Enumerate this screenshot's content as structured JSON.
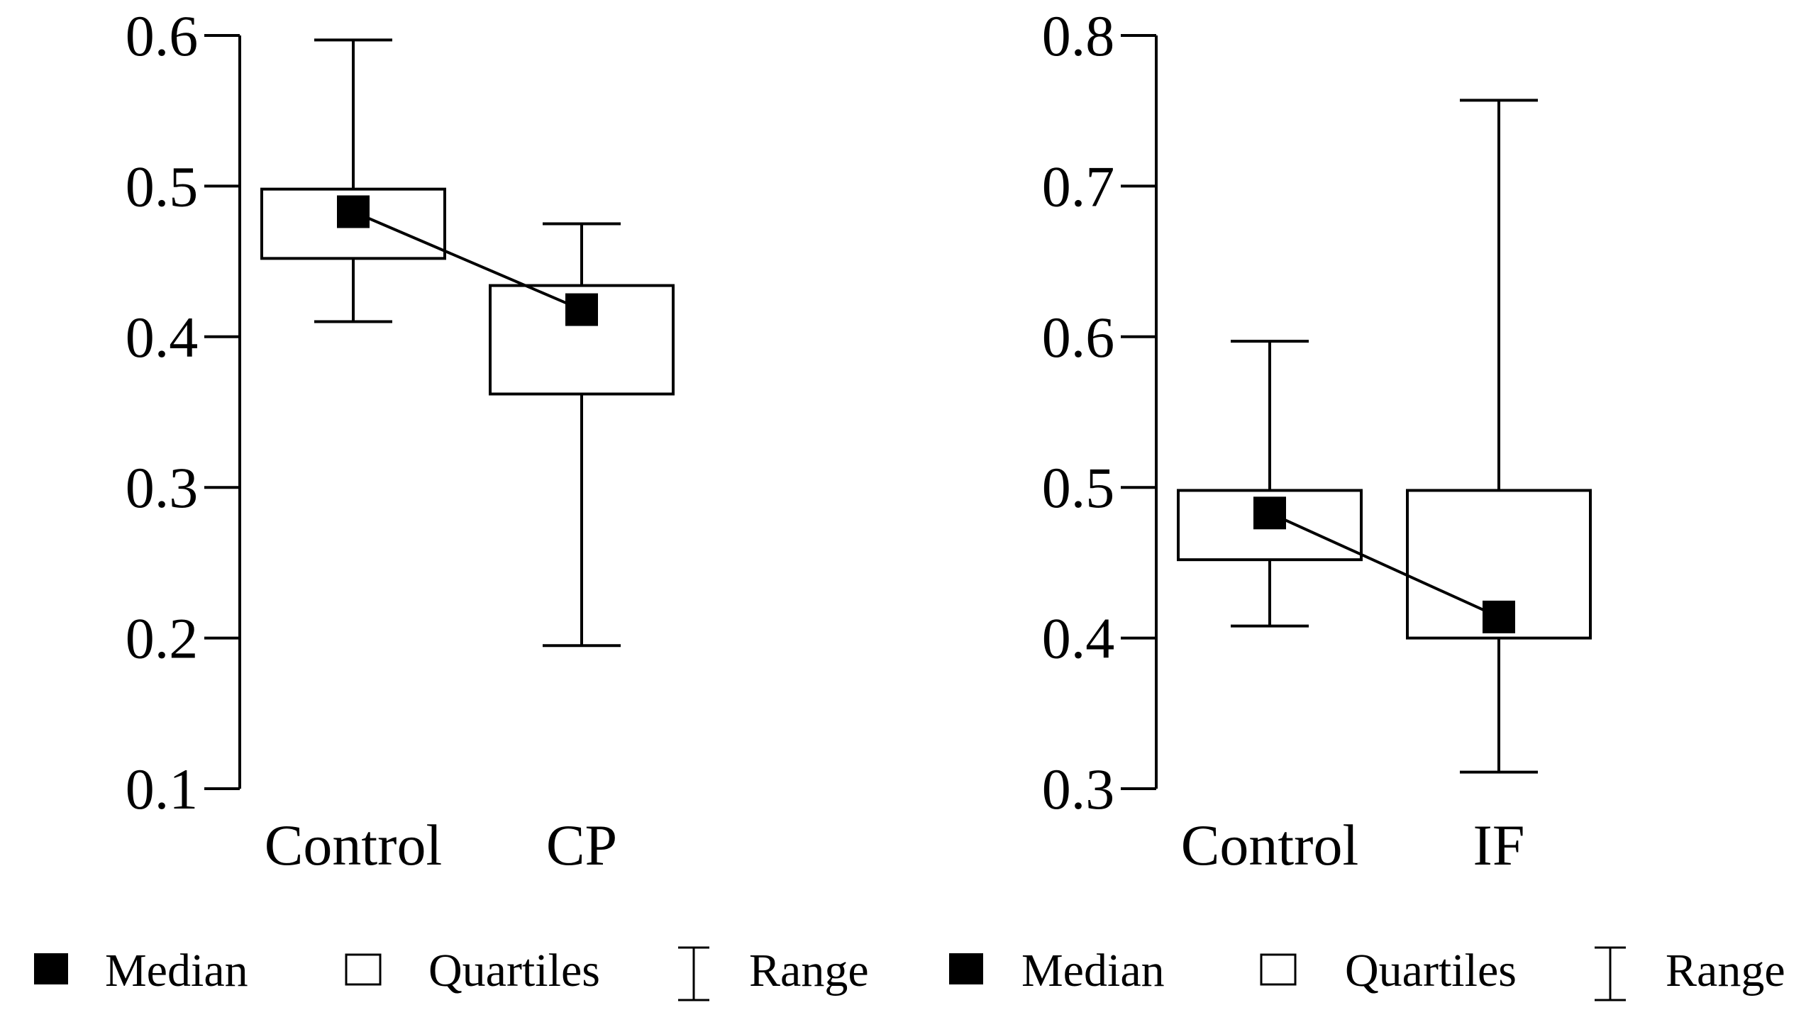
{
  "chart_data": [
    {
      "type": "box",
      "title": "",
      "xlabel": "",
      "ylabel": "",
      "ylim": [
        0.1,
        0.6
      ],
      "yticks": [
        "0.6",
        "0.5",
        "0.4",
        "0.3",
        "0.2",
        "0.1"
      ],
      "categories": [
        "Control",
        "CP"
      ],
      "groups": [
        {
          "name": "Control",
          "min": 0.41,
          "q1": 0.452,
          "median": 0.483,
          "q3": 0.498,
          "max": 0.597
        },
        {
          "name": "CP",
          "min": 0.195,
          "q1": 0.362,
          "median": 0.418,
          "q3": 0.434,
          "max": 0.475
        }
      ],
      "median_line": true
    },
    {
      "type": "box",
      "title": "",
      "xlabel": "",
      "ylabel": "",
      "ylim": [
        0.3,
        0.8
      ],
      "yticks": [
        "0.8",
        "0.7",
        "0.6",
        "0.5",
        "0.4",
        "0.3"
      ],
      "categories": [
        "Control",
        "IF"
      ],
      "groups": [
        {
          "name": "Control",
          "min": 0.408,
          "q1": 0.452,
          "median": 0.483,
          "q3": 0.498,
          "max": 0.597
        },
        {
          "name": "IF",
          "min": 0.311,
          "q1": 0.4,
          "median": 0.414,
          "q3": 0.498,
          "max": 0.757
        }
      ],
      "median_line": true
    }
  ],
  "legend": {
    "items": [
      {
        "symbol": "filled-square",
        "label": "Median"
      },
      {
        "symbol": "open-square",
        "label": "Quartiles"
      },
      {
        "symbol": "range-bar",
        "label": "Range"
      },
      {
        "symbol": "filled-square",
        "label": "Median"
      },
      {
        "symbol": "open-square",
        "label": "Quartiles"
      },
      {
        "symbol": "range-bar",
        "label": "Range"
      }
    ]
  }
}
